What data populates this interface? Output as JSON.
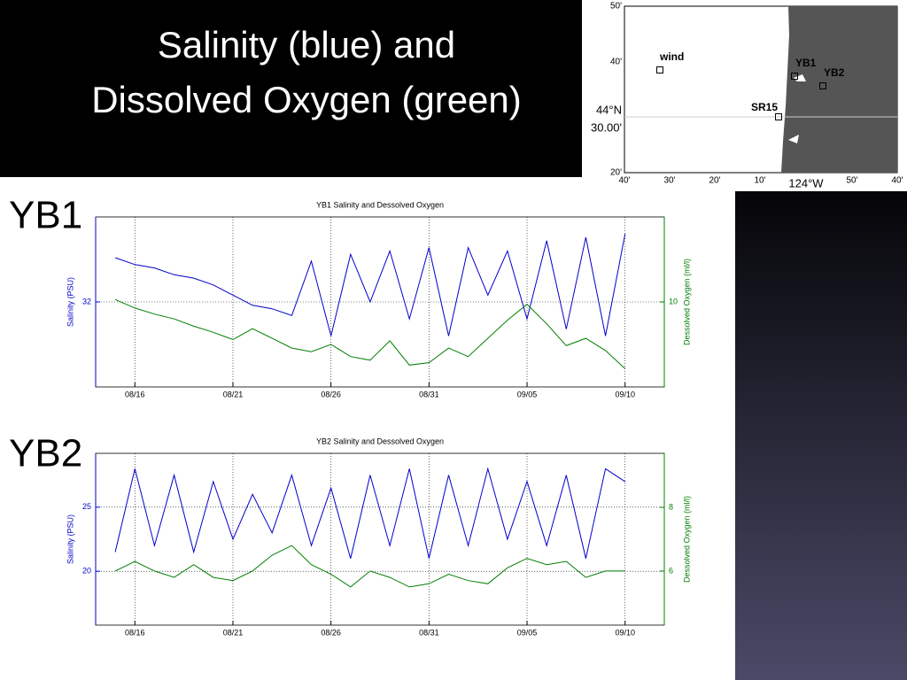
{
  "slide": {
    "title_lines": [
      "Salinity (blue) and",
      "Dissolved Oxygen (green)"
    ],
    "section_labels": [
      "YB1",
      "YB2"
    ]
  },
  "map": {
    "lat_labels": [
      "50'",
      "40'",
      "44°N",
      "30.00'",
      "20'"
    ],
    "lon_labels": [
      "40'",
      "30'",
      "20'",
      "10'",
      "124°W",
      "50'",
      "40'"
    ],
    "stations": [
      "wind",
      "YB1",
      "YB2",
      "SR15"
    ]
  },
  "chart_data": [
    {
      "type": "line",
      "title": "YB1 Salinity and Dessolved Oxygen",
      "y_label": "Salinity (PSU)",
      "y2_label": "Dessolved Oxygen (ml/l)",
      "x": [
        "08/15",
        "08/16",
        "08/17",
        "08/18",
        "08/19",
        "08/20",
        "08/21",
        "08/22",
        "08/23",
        "08/24",
        "08/25",
        "08/26",
        "08/27",
        "08/28",
        "08/29",
        "08/30",
        "08/31",
        "09/01",
        "09/02",
        "09/03",
        "09/04",
        "09/05",
        "09/06",
        "09/07",
        "09/08",
        "09/09",
        "09/10"
      ],
      "xlim": [
        "08/14",
        "09/12"
      ],
      "xticks": [
        "08/16",
        "08/21",
        "08/26",
        "08/31",
        "09/05",
        "09/10"
      ],
      "ylim": [
        29.5,
        34.5
      ],
      "yticks": [
        32
      ],
      "y2lim": [
        3,
        17
      ],
      "y2ticks": [
        10
      ],
      "grid": true,
      "series": [
        {
          "name": "Salinity",
          "color": "#0000cc",
          "values": [
            33.3,
            33.1,
            33.0,
            32.8,
            32.7,
            32.5,
            32.2,
            31.9,
            31.8,
            31.6,
            33.2,
            31.0,
            33.4,
            32.0,
            33.5,
            31.5,
            33.6,
            31.0,
            33.6,
            32.2,
            33.5,
            31.5,
            33.8,
            31.2,
            33.9,
            31.0,
            34.0
          ]
        },
        {
          "name": "Dissolved Oxygen",
          "color": "#007f00",
          "axis": "y2",
          "values": [
            10.2,
            9.5,
            9.0,
            8.6,
            8.0,
            7.5,
            6.9,
            7.8,
            7.0,
            6.2,
            5.9,
            6.5,
            5.5,
            5.2,
            6.8,
            4.8,
            5.0,
            6.2,
            5.5,
            7.0,
            8.5,
            9.8,
            8.2,
            6.4,
            7.0,
            6.0,
            4.5
          ]
        }
      ]
    },
    {
      "type": "line",
      "title": "YB2 Salinity and Dessolved Oxygen",
      "y_label": "Salinity (PSU)",
      "y2_label": "Dessolved Oxygen (ml/l)",
      "x": [
        "08/15",
        "08/16",
        "08/17",
        "08/18",
        "08/19",
        "08/20",
        "08/21",
        "08/22",
        "08/23",
        "08/24",
        "08/25",
        "08/26",
        "08/27",
        "08/28",
        "08/29",
        "08/30",
        "08/31",
        "09/01",
        "09/02",
        "09/03",
        "09/04",
        "09/05",
        "09/06",
        "09/07",
        "09/08",
        "09/09",
        "09/10"
      ],
      "xlim": [
        "08/14",
        "09/12"
      ],
      "xticks": [
        "08/16",
        "08/21",
        "08/26",
        "08/31",
        "09/05",
        "09/10"
      ],
      "ylim": [
        15.8,
        29.2
      ],
      "yticks": [
        20,
        25
      ],
      "y2lim": [
        4.3,
        9.7
      ],
      "y2ticks": [
        6,
        8
      ],
      "grid": true,
      "series": [
        {
          "name": "Salinity",
          "color": "#0000cc",
          "values": [
            21.5,
            28,
            22,
            27.5,
            21.5,
            27,
            22.5,
            26,
            23,
            27.5,
            22,
            26.5,
            21,
            27.5,
            22,
            28,
            21,
            27.5,
            22,
            28,
            22.5,
            27,
            22,
            27.5,
            21,
            28,
            27
          ]
        },
        {
          "name": "Dissolved Oxygen",
          "color": "#007f00",
          "axis": "y2",
          "values": [
            6.0,
            6.3,
            6.0,
            5.8,
            6.2,
            5.8,
            5.7,
            6.0,
            6.5,
            6.8,
            6.2,
            5.9,
            5.5,
            6.0,
            5.8,
            5.5,
            5.6,
            5.9,
            5.7,
            5.6,
            6.1,
            6.4,
            6.2,
            6.3,
            5.8,
            6.0,
            6.0
          ]
        }
      ]
    }
  ]
}
